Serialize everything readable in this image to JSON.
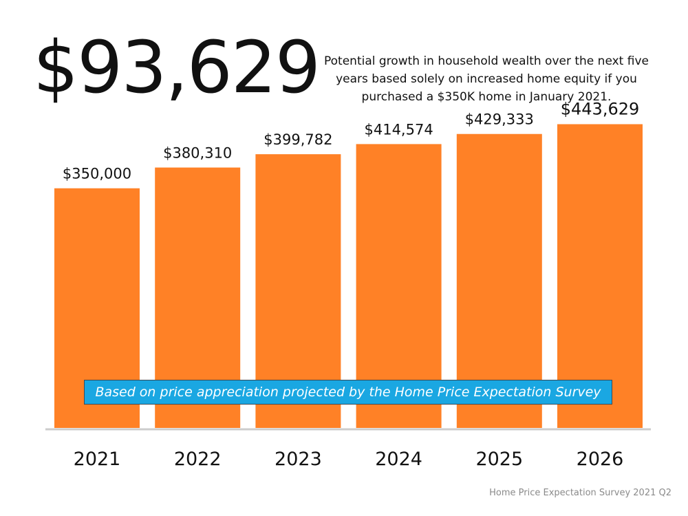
{
  "headline": {
    "value": "$93,629",
    "description": "Potential growth in household wealth over the next five years based solely on increased home equity if you purchased a $350K home in January 2021."
  },
  "note": "Based on price appreciation projected by the Home Price Expectation Survey",
  "source": "Home Price Expectation Survey 2021 Q2",
  "colors": {
    "bar": "#ff8126",
    "note_bg": "#1aa7e2",
    "baseline": "#cccccc"
  },
  "chart_data": {
    "type": "bar",
    "title": "",
    "xlabel": "",
    "ylabel": "",
    "categories": [
      "2021",
      "2022",
      "2023",
      "2024",
      "2025",
      "2026"
    ],
    "values": [
      350000,
      380310,
      399782,
      414574,
      429333,
      443629
    ],
    "data_labels": [
      "$350,000",
      "$380,310",
      "$399,782",
      "$414,574",
      "$429,333",
      "$443,629"
    ],
    "ylim": [
      0,
      625000
    ],
    "grid": false,
    "legend": "none"
  }
}
